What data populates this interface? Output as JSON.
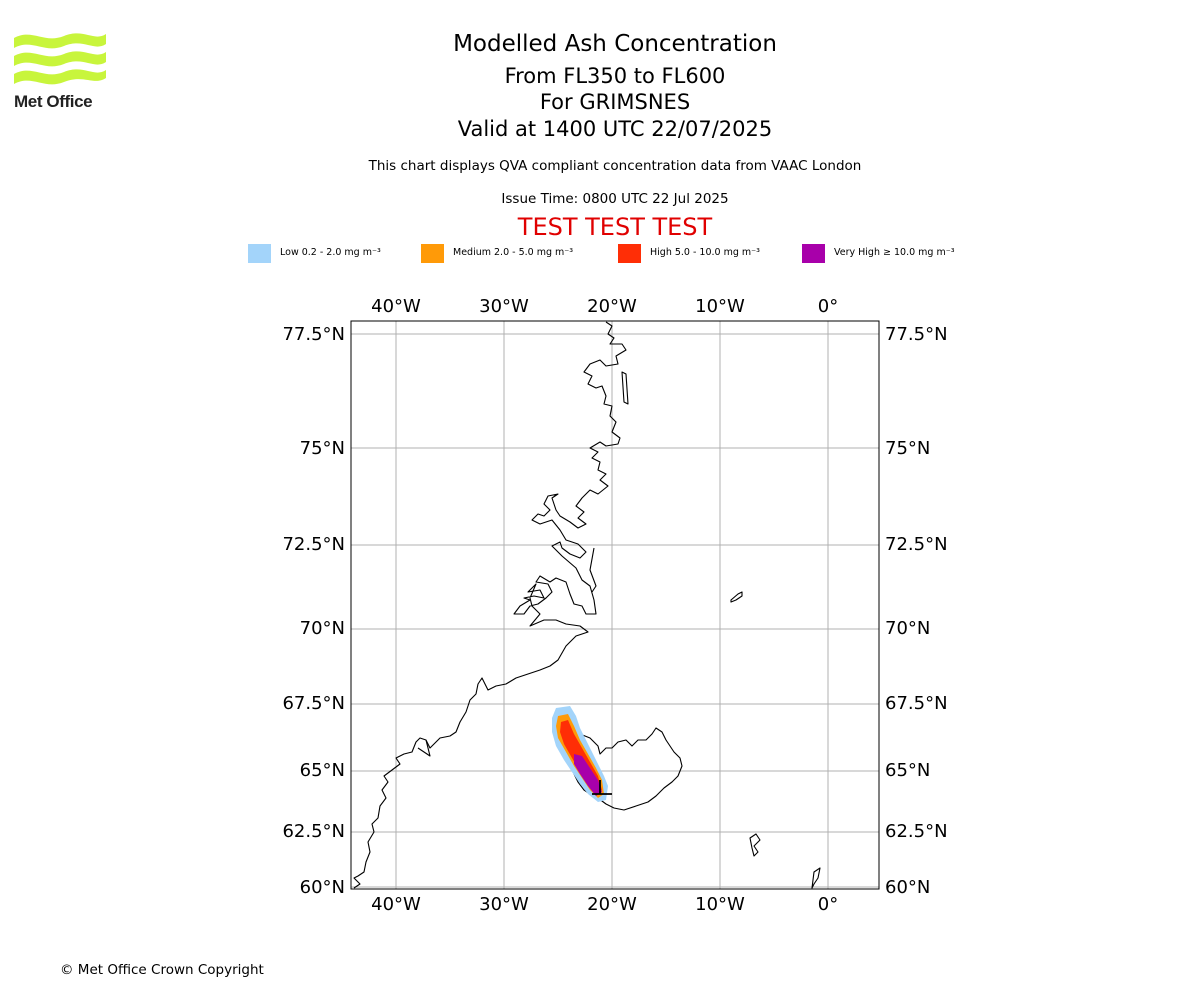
{
  "logo": {
    "text": "Met Office",
    "color": "#c8f53c"
  },
  "header": {
    "title": "Modelled Ash Concentration",
    "flight_levels": "From FL350 to FL600",
    "volcano": "For GRIMSNES",
    "valid_time": "Valid at 1400 UTC 22/07/2025",
    "data_note": "This chart displays QVA compliant concentration data from VAAC London",
    "issue_time": "Issue Time: 0800 UTC 22 Jul 2025",
    "test_banner": "TEST TEST TEST"
  },
  "legend": [
    {
      "label": "Low 0.2 - 2.0 mg m⁻³",
      "color": "#a3d4fa"
    },
    {
      "label": "Medium 2.0 - 5.0 mg m⁻³",
      "color": "#ff9a08"
    },
    {
      "label": "High 5.0 - 10.0 mg m⁻³",
      "color": "#ff2e06"
    },
    {
      "label": "Very High ≥ 10.0 mg m⁻³",
      "color": "#a800aa"
    }
  ],
  "map": {
    "lon_ticks": [
      "40°W",
      "30°W",
      "20°W",
      "10°W",
      "0°"
    ],
    "lat_ticks": [
      "77.5°N",
      "75°N",
      "72.5°N",
      "70°N",
      "67.5°N",
      "65°N",
      "62.5°N",
      "60°N"
    ],
    "gridline_color": "#b0b0b0",
    "coastline_color": "#000000"
  },
  "footer": {
    "copyright": "© Met Office Crown Copyright"
  }
}
